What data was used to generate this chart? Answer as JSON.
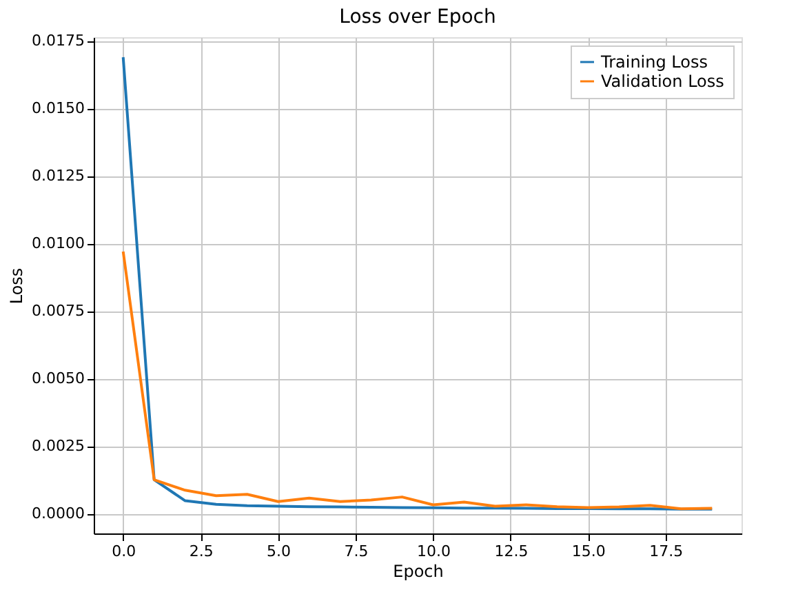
{
  "chart_data": {
    "type": "line",
    "title": "Loss over Epoch",
    "xlabel": "Epoch",
    "ylabel": "Loss",
    "x": [
      0,
      1,
      2,
      3,
      4,
      5,
      6,
      7,
      8,
      9,
      10,
      11,
      12,
      13,
      14,
      15,
      16,
      17,
      18,
      19
    ],
    "series": [
      {
        "name": "Training Loss",
        "color": "#1f77b4",
        "values": [
          0.0169,
          0.00125,
          0.00047,
          0.00034,
          0.00029,
          0.00027,
          0.00025,
          0.00024,
          0.00023,
          0.00022,
          0.00021,
          0.0002,
          0.0002,
          0.00019,
          0.00018,
          0.00018,
          0.00017,
          0.00017,
          0.00016,
          0.00016
        ]
      },
      {
        "name": "Validation Loss",
        "color": "#ff7f0e",
        "values": [
          0.0097,
          0.00125,
          0.00086,
          0.00066,
          0.00071,
          0.00044,
          0.00057,
          0.00044,
          0.0005,
          0.00061,
          0.00032,
          0.00042,
          0.00027,
          0.00032,
          0.00025,
          0.00022,
          0.00024,
          0.0003,
          0.00017,
          0.00019
        ]
      }
    ],
    "xlim": [
      -0.95,
      19.95
    ],
    "xticks": [
      {
        "value": 0,
        "label": "0.0"
      },
      {
        "value": 2.5,
        "label": "2.5"
      },
      {
        "value": 5,
        "label": "5.0"
      },
      {
        "value": 7.5,
        "label": "7.5"
      },
      {
        "value": 10,
        "label": "10.0"
      },
      {
        "value": 12.5,
        "label": "12.5"
      },
      {
        "value": 15,
        "label": "15.0"
      },
      {
        "value": 17.5,
        "label": "17.5"
      }
    ],
    "ylim": [
      -0.00074,
      0.01764
    ],
    "yticks": [
      {
        "value": 0,
        "label": "0.0000"
      },
      {
        "value": 0.0025,
        "label": "0.0025"
      },
      {
        "value": 0.005,
        "label": "0.0050"
      },
      {
        "value": 0.0075,
        "label": "0.0075"
      },
      {
        "value": 0.01,
        "label": "0.0100"
      },
      {
        "value": 0.0125,
        "label": "0.0125"
      },
      {
        "value": 0.015,
        "label": "0.0150"
      },
      {
        "value": 0.0175,
        "label": "0.0175"
      }
    ],
    "grid": true,
    "legend": "top right",
    "marker": "none",
    "line_style": "solid"
  }
}
